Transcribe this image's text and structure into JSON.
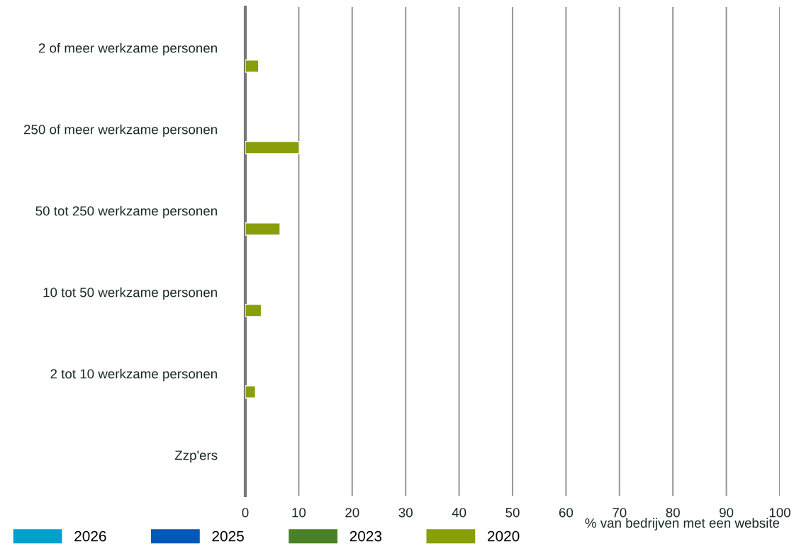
{
  "chart_data": {
    "type": "bar",
    "orientation": "horizontal",
    "categories": [
      "2 of meer werkzame personen",
      "250 of meer werkzame personen",
      "50 tot 250 werkzame personen",
      "10 tot 50 werkzame personen",
      "2 tot 10 werkzame personen",
      "Zzp'ers"
    ],
    "series": [
      {
        "name": "2026",
        "color": "#00a1cd",
        "values": [
          null,
          null,
          null,
          null,
          null,
          null
        ]
      },
      {
        "name": "2025",
        "color": "#0058b8",
        "values": [
          null,
          null,
          null,
          null,
          null,
          null
        ]
      },
      {
        "name": "2023",
        "color": "#498126",
        "values": [
          null,
          null,
          null,
          null,
          null,
          null
        ]
      },
      {
        "name": "2020",
        "color": "#8a9d0b",
        "values": [
          2.5,
          10.1,
          6.5,
          3.0,
          1.9,
          null
        ]
      }
    ],
    "xlabel": "% van bedrijven met een website",
    "xlim": [
      0,
      100
    ],
    "xticks": [
      0,
      10,
      20,
      30,
      40,
      50,
      60,
      70,
      80,
      90,
      100
    ],
    "grid": "x",
    "legend": "bottom"
  }
}
